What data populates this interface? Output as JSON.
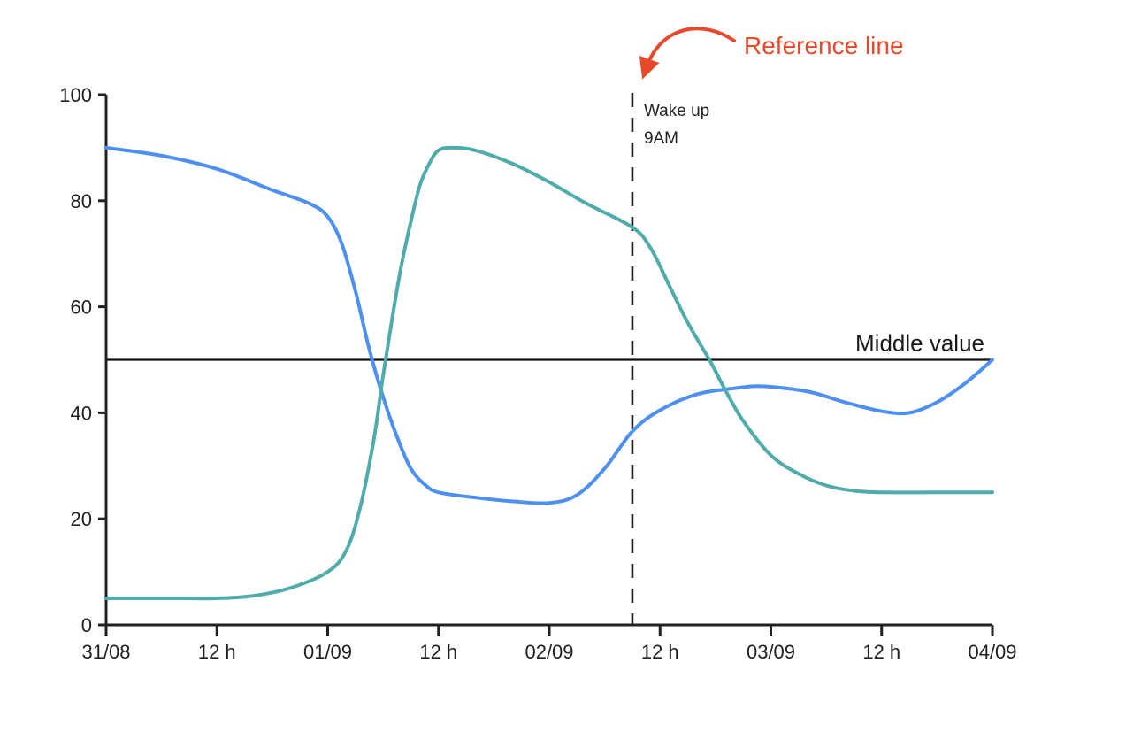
{
  "chart_data": {
    "type": "line",
    "title": "",
    "xlabel": "",
    "ylabel": "",
    "grid": false,
    "legend": "none",
    "background": "#ffffff",
    "axis_color": "#212121",
    "text_color": "#212121",
    "x_axis": {
      "total_hours": 96,
      "ticks": [
        {
          "hours": 0,
          "label": "31/08"
        },
        {
          "hours": 12,
          "label": "12 h"
        },
        {
          "hours": 24,
          "label": "01/09"
        },
        {
          "hours": 36,
          "label": "12 h"
        },
        {
          "hours": 48,
          "label": "02/09"
        },
        {
          "hours": 60,
          "label": "12 h"
        },
        {
          "hours": 72,
          "label": "03/09"
        },
        {
          "hours": 84,
          "label": "12 h"
        },
        {
          "hours": 96,
          "label": "04/09"
        }
      ]
    },
    "y_axis": {
      "min": 0,
      "max": 100,
      "ticks": [
        0,
        20,
        40,
        60,
        80,
        100
      ]
    },
    "series": [
      {
        "name": "series-blue",
        "color": "#4D90F2",
        "points": [
          [
            0,
            90
          ],
          [
            6,
            88.5
          ],
          [
            12,
            86
          ],
          [
            18,
            82
          ],
          [
            22,
            79.5
          ],
          [
            24,
            77
          ],
          [
            25.5,
            72
          ],
          [
            27,
            63
          ],
          [
            28.5,
            52
          ],
          [
            30,
            43
          ],
          [
            31.5,
            35.5
          ],
          [
            33,
            29.5
          ],
          [
            34.5,
            26.5
          ],
          [
            36,
            25
          ],
          [
            40,
            24
          ],
          [
            44,
            23.3
          ],
          [
            48,
            23
          ],
          [
            51,
            24.5
          ],
          [
            54,
            29.5
          ],
          [
            57,
            36.5
          ],
          [
            60,
            40.5
          ],
          [
            64,
            43.5
          ],
          [
            68,
            44.6
          ],
          [
            71,
            45
          ],
          [
            76,
            44
          ],
          [
            80,
            42
          ],
          [
            84,
            40.3
          ],
          [
            87,
            40
          ],
          [
            90,
            42
          ],
          [
            93,
            45.5
          ],
          [
            96,
            50
          ]
        ]
      },
      {
        "name": "series-teal",
        "color": "#4FACAA",
        "points": [
          [
            0,
            5
          ],
          [
            8,
            5
          ],
          [
            12,
            5
          ],
          [
            16,
            5.5
          ],
          [
            20,
            7
          ],
          [
            24,
            10
          ],
          [
            26,
            14
          ],
          [
            27.5,
            22
          ],
          [
            29,
            35
          ],
          [
            30,
            47
          ],
          [
            31,
            58
          ],
          [
            32,
            68
          ],
          [
            33,
            76
          ],
          [
            34,
            83
          ],
          [
            35,
            87
          ],
          [
            36,
            89.5
          ],
          [
            37.5,
            90
          ],
          [
            40,
            89.5
          ],
          [
            44,
            87
          ],
          [
            48,
            83.5
          ],
          [
            52,
            79.5
          ],
          [
            57,
            75
          ],
          [
            59,
            71
          ],
          [
            61,
            64
          ],
          [
            63,
            57
          ],
          [
            65.5,
            49.5
          ],
          [
            67,
            44.5
          ],
          [
            69,
            38.5
          ],
          [
            72,
            32
          ],
          [
            75,
            28.5
          ],
          [
            78,
            26.3
          ],
          [
            81,
            25.3
          ],
          [
            84,
            25
          ],
          [
            90,
            25
          ],
          [
            96,
            25
          ]
        ]
      }
    ],
    "middle_line": {
      "value": 50,
      "label": "Middle value",
      "color": "#111111"
    },
    "reference_line": {
      "hours": 57,
      "label_lines": [
        "Wake up",
        "9AM"
      ],
      "color": "#212121",
      "style": "dashed"
    },
    "annotation": {
      "label": "Reference line",
      "color": "#E8492B"
    }
  }
}
